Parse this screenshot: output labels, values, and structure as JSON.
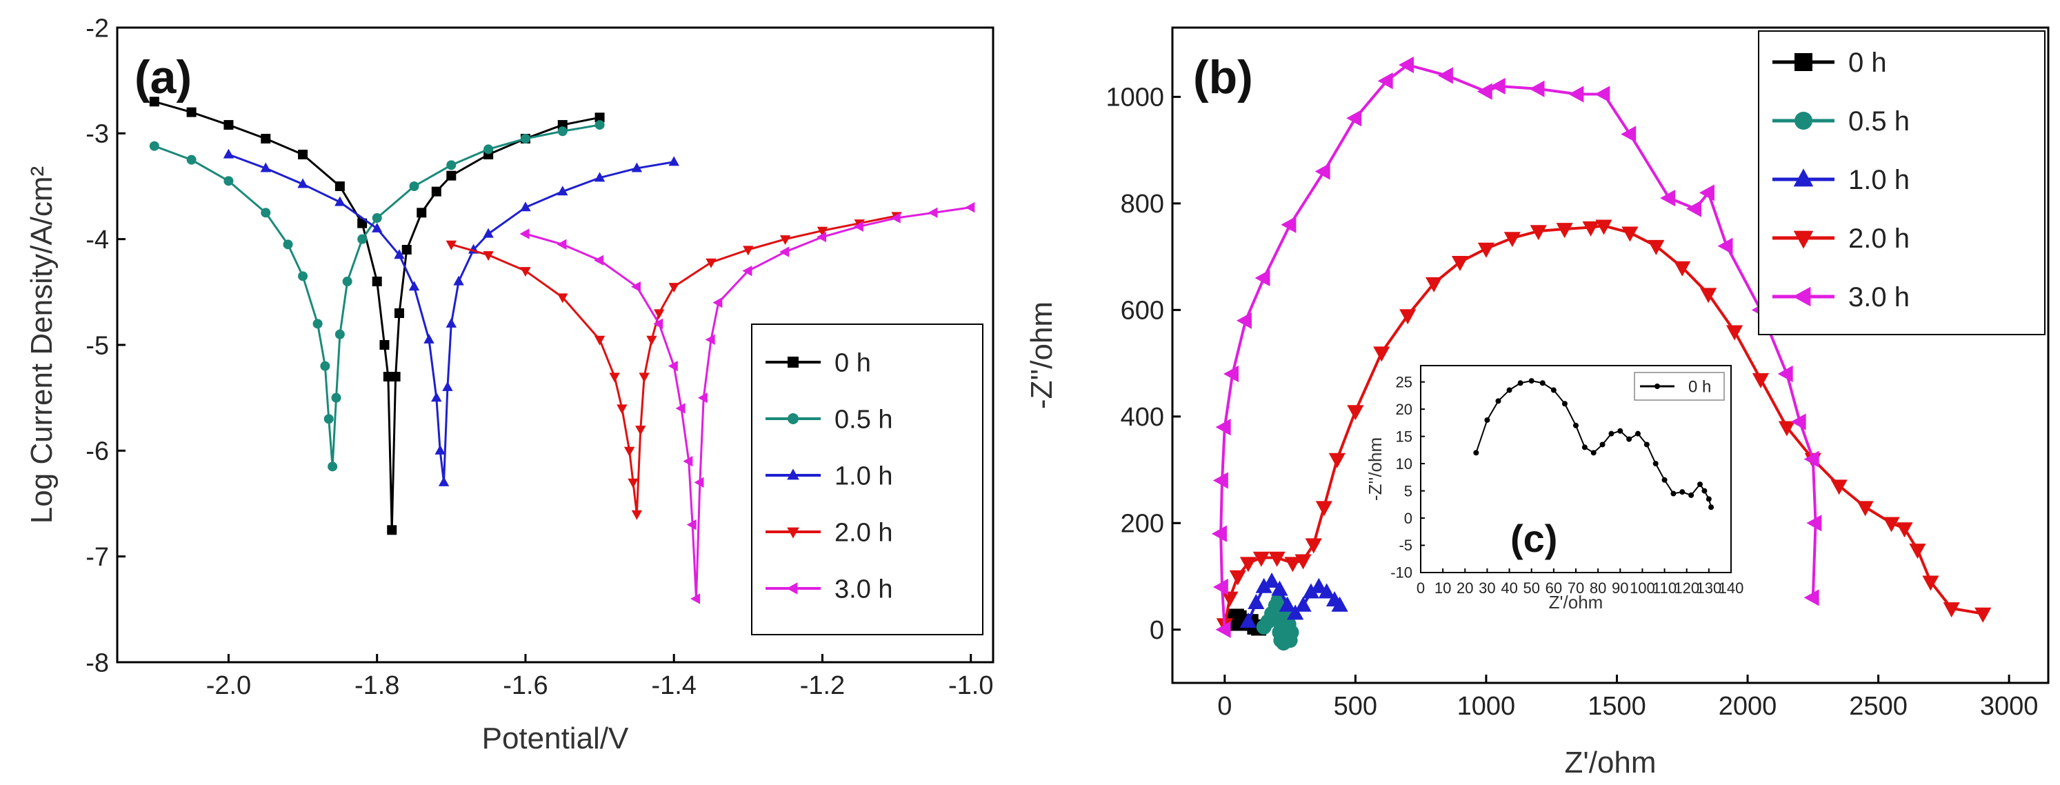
{
  "chart_data": [
    {
      "panel": "(a)",
      "type": "line",
      "title": "",
      "xlabel": "Potential/V",
      "ylabel": "Log Current Density/A/cm²",
      "xlim": [
        -2.15,
        -0.97
      ],
      "ylim": [
        -8,
        -2
      ],
      "xticks": [
        -2.0,
        -1.8,
        -1.6,
        -1.4,
        -1.2,
        -1.0
      ],
      "xtick_labels": [
        "-2.0",
        "-1.8",
        "-1.6",
        "-1.4",
        "-1.2",
        "-1.0"
      ],
      "yticks": [
        -8,
        -7,
        -6,
        -5,
        -4,
        -3,
        -2
      ],
      "ytick_labels": [
        "-8",
        "-7",
        "-6",
        "-5",
        "-4",
        "-3",
        "-2"
      ],
      "legend_position": "center-right",
      "series": [
        {
          "name": "0 h",
          "color": "#000000",
          "marker": "square",
          "ecorr": -1.78,
          "x": [
            -2.1,
            -2.05,
            -2.0,
            -1.95,
            -1.9,
            -1.85,
            -1.82,
            -1.8,
            -1.79,
            -1.785,
            -1.78,
            -1.775,
            -1.77,
            -1.76,
            -1.74,
            -1.72,
            -1.7,
            -1.65,
            -1.6,
            -1.55,
            -1.5
          ],
          "y": [
            -2.7,
            -2.8,
            -2.92,
            -3.05,
            -3.2,
            -3.5,
            -3.85,
            -4.4,
            -5.0,
            -5.3,
            -6.75,
            -5.3,
            -4.7,
            -4.1,
            -3.75,
            -3.55,
            -3.4,
            -3.2,
            -3.05,
            -2.92,
            -2.85
          ]
        },
        {
          "name": "0.5 h",
          "color": "#1a8a7a",
          "marker": "circle",
          "ecorr": -1.86,
          "x": [
            -2.1,
            -2.05,
            -2.0,
            -1.95,
            -1.92,
            -1.9,
            -1.88,
            -1.87,
            -1.865,
            -1.86,
            -1.855,
            -1.85,
            -1.84,
            -1.82,
            -1.8,
            -1.75,
            -1.7,
            -1.65,
            -1.6,
            -1.55,
            -1.5
          ],
          "y": [
            -3.12,
            -3.25,
            -3.45,
            -3.75,
            -4.05,
            -4.35,
            -4.8,
            -5.2,
            -5.7,
            -6.15,
            -5.5,
            -4.9,
            -4.4,
            -4.0,
            -3.8,
            -3.5,
            -3.3,
            -3.15,
            -3.05,
            -2.98,
            -2.92
          ]
        },
        {
          "name": "1.0 h",
          "color": "#1f1fd0",
          "marker": "triangle-up",
          "ecorr": -1.71,
          "x": [
            -2.0,
            -1.95,
            -1.9,
            -1.85,
            -1.8,
            -1.77,
            -1.75,
            -1.73,
            -1.72,
            -1.715,
            -1.71,
            -1.705,
            -1.7,
            -1.69,
            -1.67,
            -1.65,
            -1.6,
            -1.55,
            -1.5,
            -1.45,
            -1.4
          ],
          "y": [
            -3.2,
            -3.33,
            -3.48,
            -3.65,
            -3.9,
            -4.15,
            -4.45,
            -4.95,
            -5.5,
            -6.0,
            -6.3,
            -5.4,
            -4.8,
            -4.4,
            -4.1,
            -3.95,
            -3.7,
            -3.55,
            -3.42,
            -3.33,
            -3.27
          ]
        },
        {
          "name": "2.0 h",
          "color": "#e01010",
          "marker": "triangle-down",
          "ecorr": -1.45,
          "x": [
            -1.7,
            -1.65,
            -1.6,
            -1.55,
            -1.5,
            -1.48,
            -1.47,
            -1.46,
            -1.455,
            -1.45,
            -1.445,
            -1.44,
            -1.43,
            -1.42,
            -1.4,
            -1.35,
            -1.3,
            -1.25,
            -1.2,
            -1.15,
            -1.1
          ],
          "y": [
            -4.05,
            -4.15,
            -4.3,
            -4.55,
            -4.95,
            -5.3,
            -5.6,
            -6.0,
            -6.3,
            -6.6,
            -5.8,
            -5.3,
            -4.95,
            -4.7,
            -4.45,
            -4.22,
            -4.1,
            -4.0,
            -3.92,
            -3.85,
            -3.78
          ]
        },
        {
          "name": "3.0 h",
          "color": "#e01ee0",
          "marker": "triangle-left",
          "ecorr": -1.37,
          "x": [
            -1.6,
            -1.55,
            -1.5,
            -1.45,
            -1.42,
            -1.4,
            -1.39,
            -1.38,
            -1.375,
            -1.37,
            -1.365,
            -1.36,
            -1.35,
            -1.34,
            -1.3,
            -1.25,
            -1.2,
            -1.15,
            -1.1,
            -1.05,
            -1.0
          ],
          "y": [
            -3.95,
            -4.05,
            -4.2,
            -4.45,
            -4.8,
            -5.2,
            -5.6,
            -6.1,
            -6.7,
            -7.4,
            -6.3,
            -5.5,
            -4.95,
            -4.6,
            -4.3,
            -4.12,
            -3.98,
            -3.88,
            -3.8,
            -3.75,
            -3.7
          ]
        }
      ]
    },
    {
      "panel": "(b)",
      "type": "line",
      "title": "",
      "xlabel": "Z'/ohm",
      "ylabel": "-Z''/ohm",
      "xlim": [
        -200,
        3150
      ],
      "ylim": [
        -100,
        1130
      ],
      "xticks": [
        0,
        500,
        1000,
        1500,
        2000,
        2500,
        3000
      ],
      "xtick_labels": [
        "0",
        "500",
        "1000",
        "1500",
        "2000",
        "2500",
        "3000"
      ],
      "yticks": [
        0,
        200,
        400,
        600,
        800,
        1000
      ],
      "ytick_labels": [
        "0",
        "200",
        "400",
        "600",
        "800",
        "1000"
      ],
      "legend_position": "top-right",
      "series": [
        {
          "name": "0 h",
          "color": "#000000",
          "marker": "square",
          "x": [
            25,
            35,
            45,
            55,
            65,
            75,
            85,
            100,
            115,
            130
          ],
          "y": [
            12,
            22,
            25,
            22,
            14,
            12,
            15,
            15,
            5,
            3
          ]
        },
        {
          "name": "0.5 h",
          "color": "#1a8a7a",
          "marker": "circle",
          "x": [
            150,
            165,
            180,
            195,
            205,
            215,
            225,
            235,
            240,
            235,
            225,
            215,
            210,
            215,
            230,
            245,
            255,
            250
          ],
          "y": [
            5,
            15,
            30,
            45,
            55,
            50,
            35,
            15,
            0,
            -15,
            -25,
            -20,
            -5,
            10,
            20,
            10,
            -5,
            -20
          ]
        },
        {
          "name": "1.0 h",
          "color": "#1f1fd0",
          "marker": "triangle-up",
          "x": [
            90,
            120,
            150,
            180,
            210,
            240,
            270,
            300,
            330,
            360,
            390,
            420,
            440
          ],
          "y": [
            15,
            50,
            80,
            90,
            75,
            45,
            30,
            45,
            70,
            80,
            70,
            55,
            45
          ]
        },
        {
          "name": "2.0 h",
          "color": "#e01010",
          "marker": "triangle-down",
          "x": [
            0,
            20,
            50,
            90,
            140,
            200,
            260,
            300,
            340,
            380,
            430,
            500,
            600,
            700,
            800,
            900,
            1000,
            1100,
            1200,
            1300,
            1400,
            1450,
            1550,
            1650,
            1750,
            1850,
            1950,
            2050,
            2150,
            2250,
            2350,
            2450,
            2550,
            2600,
            2650,
            2700,
            2780,
            2900
          ],
          "y": [
            10,
            60,
            100,
            125,
            135,
            135,
            125,
            130,
            160,
            230,
            320,
            410,
            520,
            590,
            650,
            690,
            715,
            735,
            748,
            752,
            755,
            758,
            745,
            720,
            680,
            630,
            560,
            470,
            380,
            320,
            270,
            230,
            200,
            190,
            150,
            90,
            40,
            30
          ]
        },
        {
          "name": "3.0 h",
          "color": "#e01ee0",
          "marker": "triangle-left",
          "x": [
            0,
            -10,
            -15,
            -10,
            0,
            30,
            80,
            150,
            250,
            380,
            500,
            620,
            700,
            850,
            1000,
            1050,
            1200,
            1350,
            1450,
            1550,
            1700,
            1800,
            1850,
            1920,
            2050,
            2150,
            2200,
            2250,
            2260,
            2250
          ],
          "y": [
            0,
            80,
            180,
            280,
            380,
            480,
            580,
            660,
            760,
            860,
            960,
            1030,
            1060,
            1040,
            1010,
            1020,
            1015,
            1005,
            1005,
            930,
            810,
            790,
            820,
            720,
            600,
            480,
            390,
            320,
            200,
            60
          ]
        }
      ]
    },
    {
      "panel": "(c)",
      "type": "line",
      "title": "",
      "xlabel": "Z'/ohm",
      "ylabel": "-Z''/ohm",
      "xlim": [
        0,
        140
      ],
      "ylim": [
        -10,
        28
      ],
      "xticks": [
        0,
        10,
        20,
        30,
        40,
        50,
        60,
        70,
        80,
        90,
        100,
        110,
        120,
        130,
        140
      ],
      "xtick_labels": [
        "0",
        "10",
        "20",
        "30",
        "40",
        "50",
        "60",
        "70",
        "80",
        "90",
        "100",
        "110",
        "120",
        "130",
        "140"
      ],
      "yticks": [
        -10,
        -5,
        0,
        5,
        10,
        15,
        20,
        25
      ],
      "ytick_labels": [
        "-10",
        "-5",
        "0",
        "5",
        "10",
        "15",
        "20",
        "25"
      ],
      "legend_position": "top-right",
      "series": [
        {
          "name": "0 h",
          "color": "#000000",
          "marker": "circle",
          "x": [
            25,
            30,
            35,
            40,
            45,
            50,
            55,
            60,
            65,
            70,
            74,
            78,
            82,
            86,
            90,
            94,
            98,
            102,
            106,
            110,
            114,
            118,
            122,
            126,
            128,
            130,
            131
          ],
          "y": [
            12,
            18,
            21.5,
            23.5,
            24.8,
            25.2,
            24.8,
            23.5,
            21,
            17,
            13,
            12,
            13.5,
            15.5,
            16,
            14.5,
            15.5,
            13.5,
            10,
            7,
            4.5,
            4.8,
            4.2,
            6.2,
            5,
            3.5,
            2
          ]
        }
      ]
    }
  ]
}
